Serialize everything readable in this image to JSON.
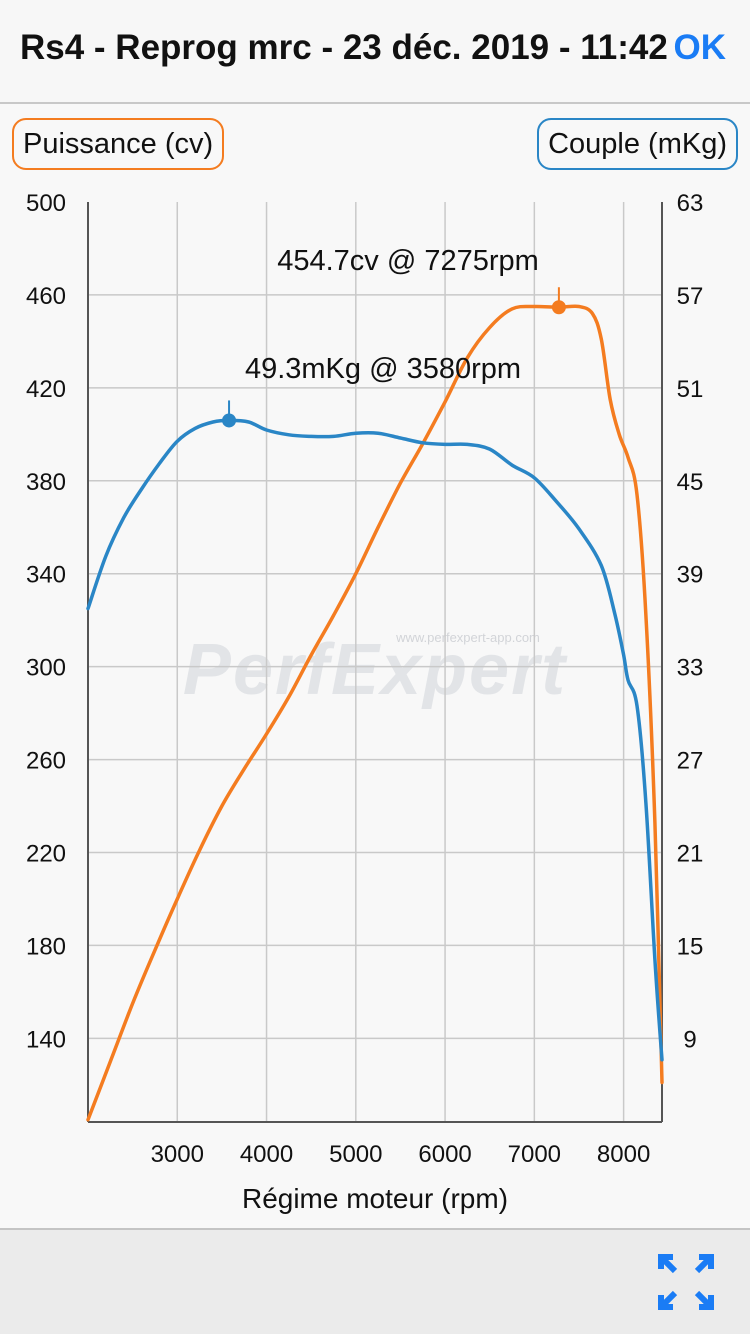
{
  "navbar": {
    "title": "Rs4 - Reprog mrc - 23 déc. 2019 - 11:42",
    "ok_label": "OK"
  },
  "legend": {
    "left_label": "Puissance (cv)",
    "right_label": "Couple (mKg)"
  },
  "colors": {
    "power": "#f47c20",
    "torque": "#2a86c6",
    "ok": "#1a7cf5"
  },
  "watermark": {
    "brand": "PerfExpert",
    "url": "www.perfexpert-app.com"
  },
  "bottombar": {
    "expand_icon": "expand-arrows-icon"
  },
  "chart_data": {
    "type": "line",
    "title": "",
    "xlabel": "Régime moteur (rpm)",
    "ylabel_left": "Puissance (cv)",
    "ylabel_right": "Couple (mKg)",
    "xlim": [
      2000,
      8430
    ],
    "ylim_left": [
      104,
      500
    ],
    "ylim_right": [
      5.3,
      63
    ],
    "x_ticks": [
      3000,
      4000,
      5000,
      6000,
      7000,
      8000
    ],
    "y_ticks_left": [
      500,
      460,
      420,
      380,
      340,
      300,
      260,
      220,
      180,
      140
    ],
    "y_ticks_right": [
      63,
      57,
      51,
      45,
      39,
      33,
      27,
      21,
      15,
      9
    ],
    "grid": true,
    "series": [
      {
        "name": "Puissance (cv)",
        "axis": "left",
        "x": [
          2000,
          2250,
          2500,
          2750,
          3000,
          3250,
          3500,
          3750,
          4000,
          4250,
          4500,
          4750,
          5000,
          5250,
          5500,
          5750,
          6000,
          6250,
          6500,
          6750,
          7000,
          7275,
          7500,
          7650,
          7750,
          7850,
          7950,
          8050,
          8150,
          8250,
          8350,
          8430
        ],
        "values": [
          105,
          130,
          155,
          178,
          200,
          221,
          240,
          256,
          271,
          287,
          305,
          322,
          340,
          360,
          379,
          396,
          414,
          433,
          446,
          454,
          455,
          454.7,
          455,
          452,
          441,
          415,
          400,
          390,
          374,
          322,
          233,
          121
        ]
      },
      {
        "name": "Couple (mKg)",
        "axis": "right",
        "x": [
          2000,
          2200,
          2400,
          2600,
          2800,
          3000,
          3200,
          3400,
          3580,
          3800,
          4000,
          4250,
          4500,
          4750,
          5000,
          5250,
          5500,
          5750,
          6000,
          6250,
          6500,
          6750,
          7000,
          7250,
          7500,
          7750,
          7900,
          8000,
          8050,
          8150,
          8250,
          8350,
          8430
        ],
        "values": [
          37.5,
          40.8,
          43.2,
          45.0,
          46.6,
          48.0,
          48.8,
          49.2,
          49.3,
          49.2,
          48.7,
          48.4,
          48.3,
          48.3,
          48.5,
          48.5,
          48.2,
          47.9,
          47.8,
          47.8,
          47.5,
          46.5,
          45.7,
          44.2,
          42.5,
          40.2,
          37.2,
          34.6,
          33.0,
          31.4,
          25.3,
          15.5,
          9.2
        ]
      }
    ],
    "annotations": [
      {
        "text": "454.7cv @ 7275rpm",
        "series": "Puissance (cv)",
        "x": 7275,
        "y": 454.7
      },
      {
        "text": "49.3mKg @ 3580rpm",
        "series": "Couple (mKg)",
        "x": 3580,
        "y": 49.3
      }
    ]
  }
}
